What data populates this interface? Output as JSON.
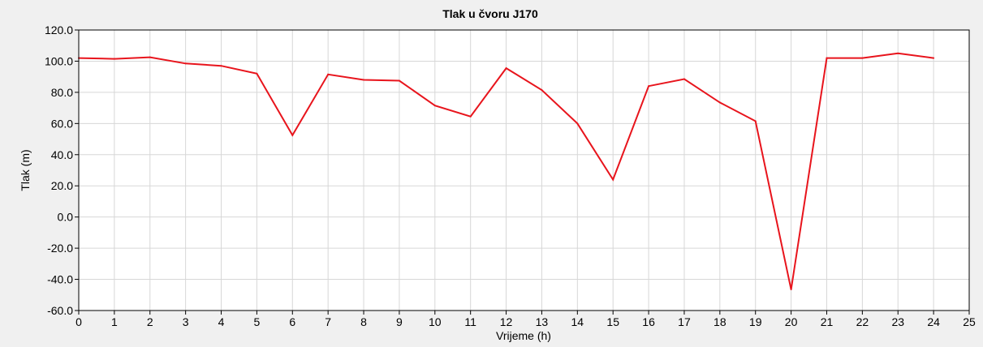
{
  "chart_data": {
    "type": "line",
    "title": "Tlak u čvoru J170",
    "xlabel": "Vrijeme (h)",
    "ylabel": "Tlak (m)",
    "xlim": [
      0,
      25
    ],
    "ylim": [
      -60,
      120
    ],
    "x_ticks": [
      0,
      1,
      2,
      3,
      4,
      5,
      6,
      7,
      8,
      9,
      10,
      11,
      12,
      13,
      14,
      15,
      16,
      17,
      18,
      19,
      20,
      21,
      22,
      23,
      24,
      25
    ],
    "x_tick_labels": [
      "0",
      "1",
      "2",
      "3",
      "4",
      "5",
      "6",
      "7",
      "8",
      "9",
      "10",
      "11",
      "12",
      "13",
      "14",
      "15",
      "16",
      "17",
      "18",
      "19",
      "20",
      "21",
      "22",
      "23",
      "24",
      "25"
    ],
    "y_ticks": [
      120,
      100,
      80,
      60,
      40,
      20,
      0,
      -20,
      -40,
      -60
    ],
    "y_tick_labels": [
      "120.0",
      "100.0",
      "80.0",
      "60.0",
      "40.0",
      "20.0",
      "0.0",
      "-20.0",
      "-40.0",
      "-60.0"
    ],
    "grid": true,
    "series": [
      {
        "color": "#e8141c",
        "x": [
          0,
          1,
          2,
          3,
          4,
          5,
          6,
          7,
          8,
          9,
          10,
          11,
          12,
          13,
          14,
          15,
          16,
          17,
          18,
          19,
          20,
          21,
          22,
          23,
          24
        ],
        "values": [
          102,
          101.5,
          102.5,
          98.5,
          97,
          92,
          52.5,
          91.5,
          88,
          87.5,
          71.5,
          64.5,
          95.5,
          81.5,
          60,
          24,
          84,
          88.5,
          73.5,
          61.5,
          -46.5,
          102,
          102,
          105,
          102
        ]
      }
    ]
  }
}
